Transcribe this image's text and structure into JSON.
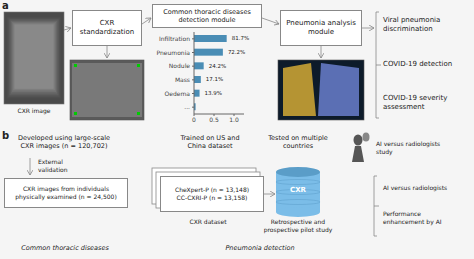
{
  "chart_data": {
    "type": "bar",
    "orientation": "horizontal",
    "categories": [
      "Infiltration",
      "Pneumonia",
      "Nodule",
      "Mass",
      "Oedema",
      "..."
    ],
    "values": [
      0.817,
      0.722,
      0.242,
      0.171,
      0.139,
      0.04
    ],
    "value_labels": [
      "81.7%",
      "72.2%",
      "24.2%",
      "17.1%",
      "13.9%",
      null
    ],
    "data_labels": true,
    "color": "#4a8db5",
    "xlim": [
      0,
      1.25
    ],
    "xticks": [
      0,
      0.5,
      {
        "value": 1.0,
        "label": "1.0"
      }
    ],
    "grid": false,
    "annotations": [
      "a",
      "CXR image",
      "CXR\nstandardization",
      "Common thoracic diseases\ndetection module",
      "Pneumonia analysis\nmodule",
      "Viral pneumonia\ndiscrimination",
      "COVID-19 detection",
      "COVID-19 severity\nassessment",
      "b",
      "Developed using large-scale\nCXR images (n = 120,702)",
      "External\nvalidation",
      "CXR images from individuals\nphysically examined (n = 24,500)",
      "Trained on US and\nChina dataset",
      "CheXpert-P (n = 13,148)\nCC-CXRI-P (n = 13,158)",
      "CXR dataset",
      "CXR",
      "Tested on multiple\ncountries",
      "Retrospective and\nprospective pilot study",
      "AI versus radiologists\nstudy",
      "AI versus radiologists",
      "Performance\nenhancement by AI",
      "Common thoracic diseases",
      "Pneumonia detection"
    ]
  }
}
